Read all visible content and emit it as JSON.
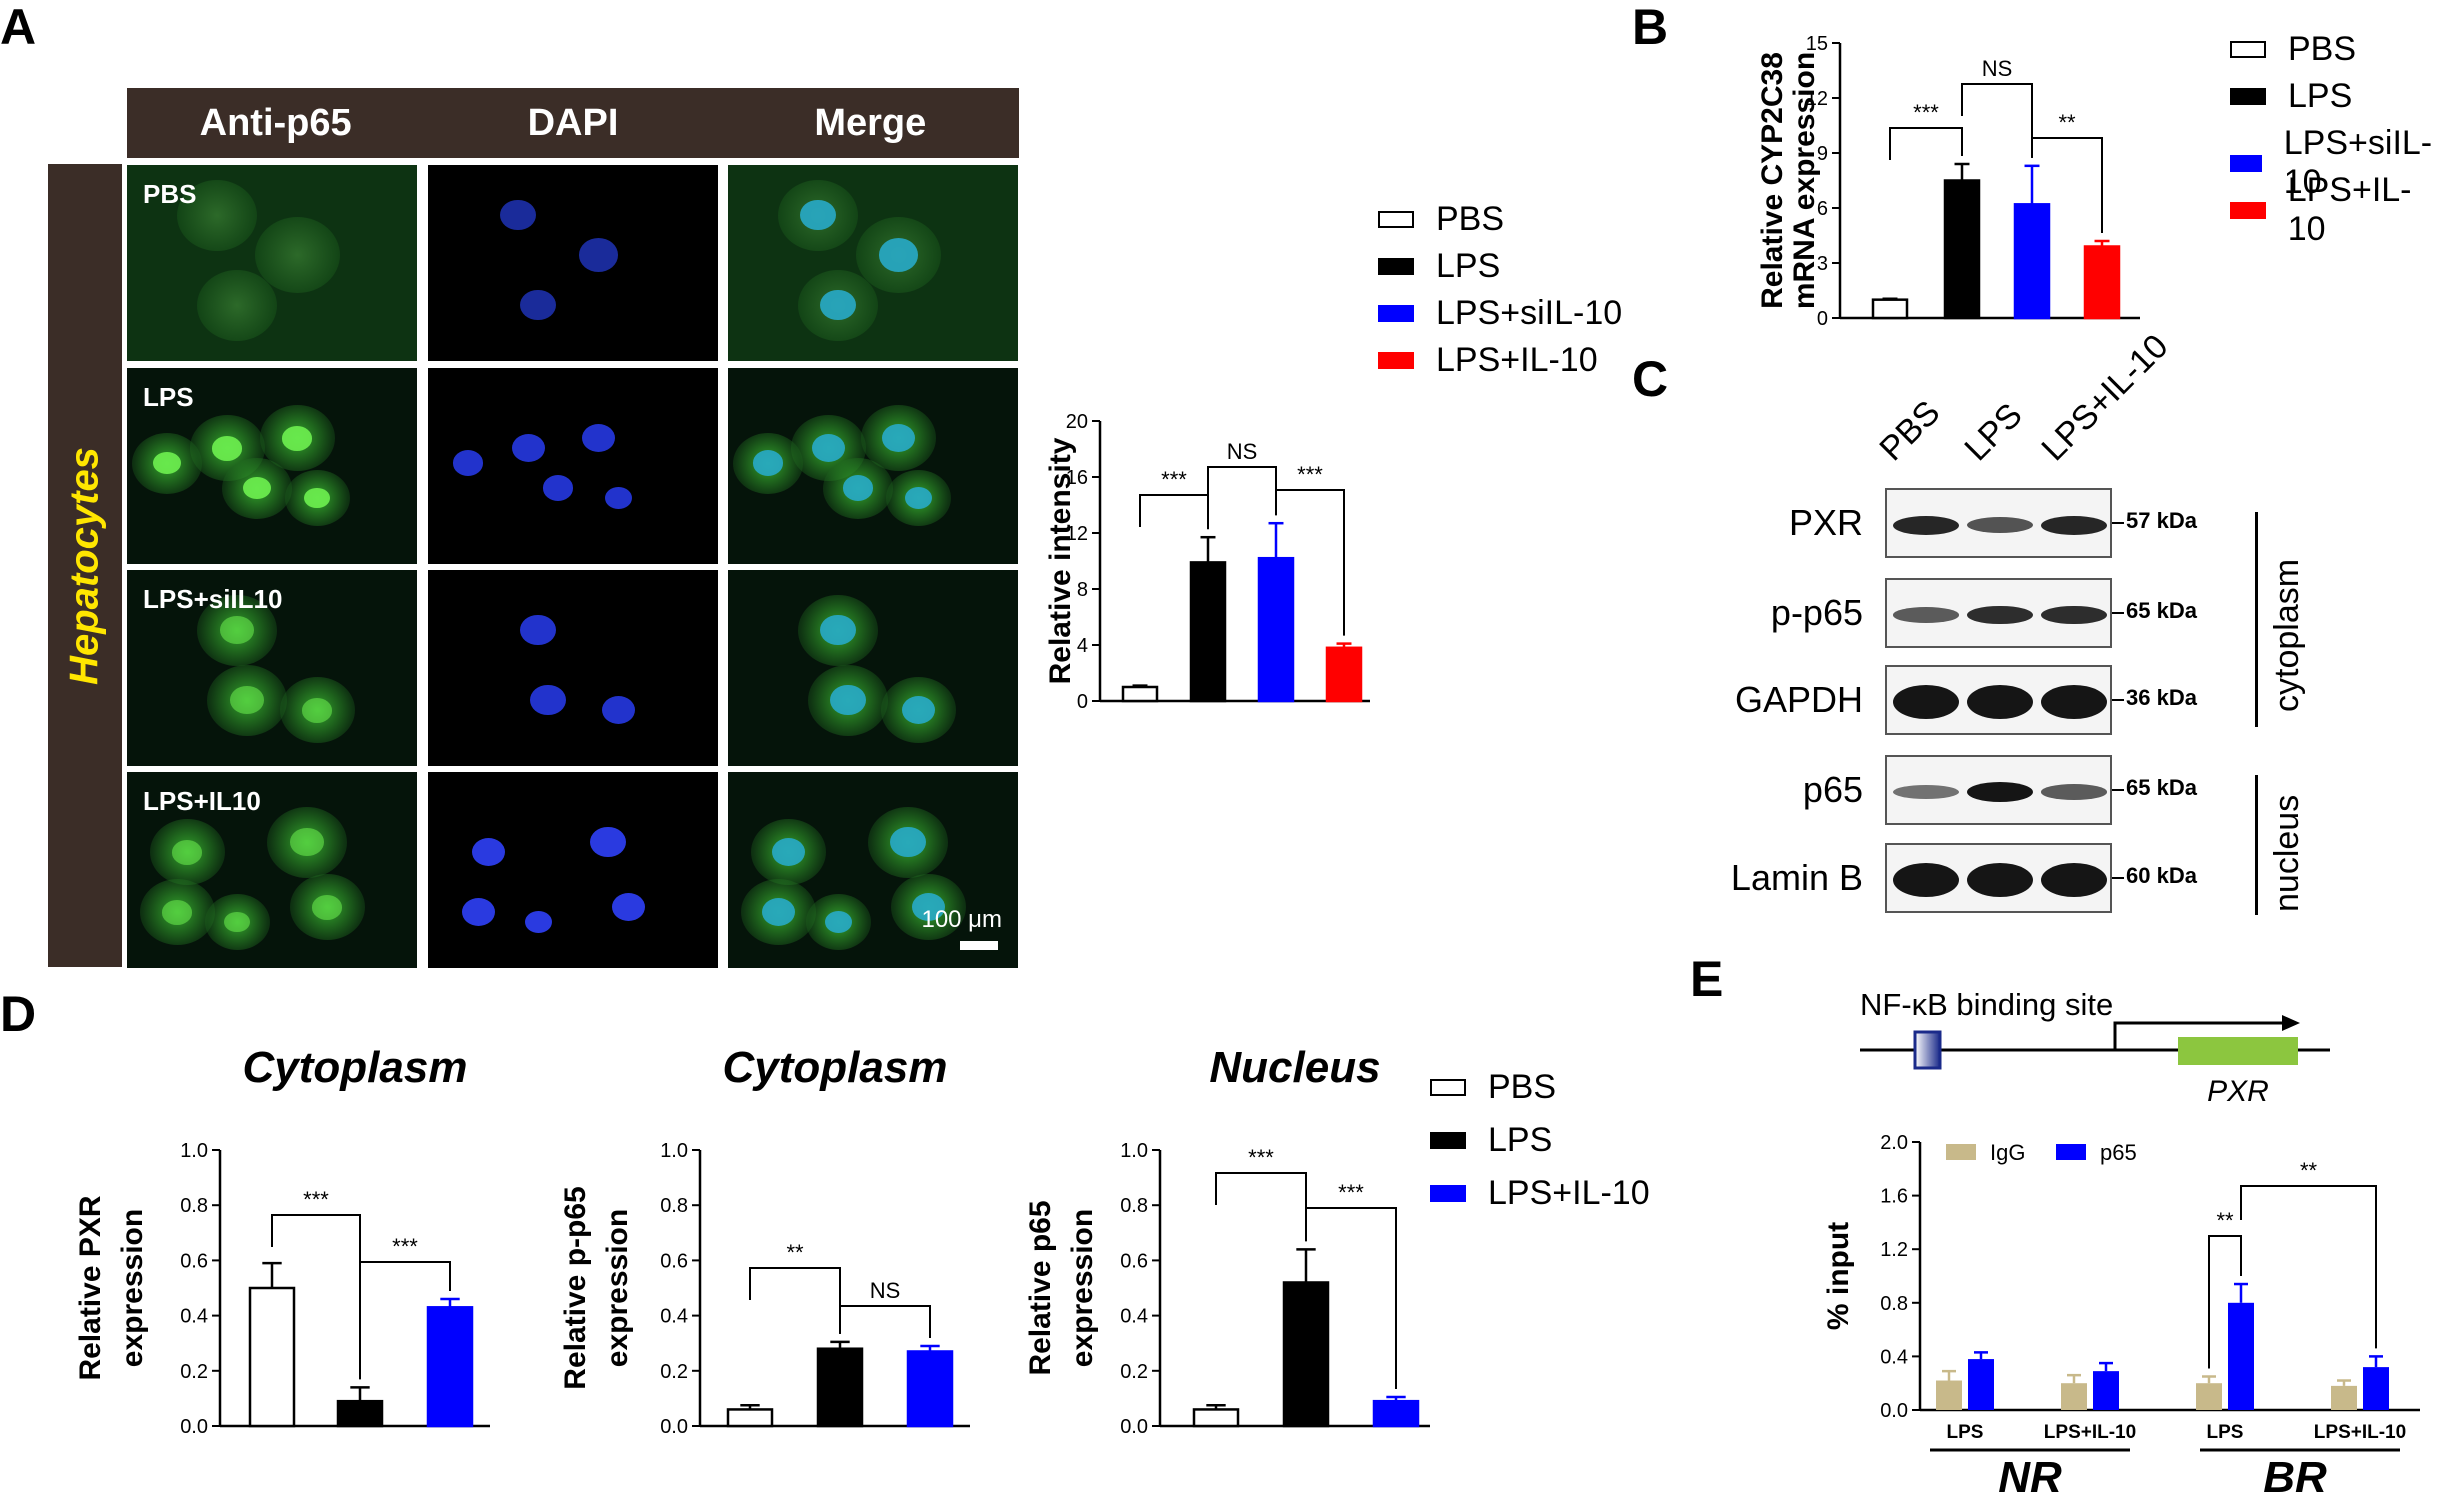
{
  "panelA": {
    "letter": "A",
    "columns": [
      "Anti-p65",
      "DAPI",
      "Merge"
    ],
    "side_label": "Hepatocytes",
    "rows": [
      "PBS",
      "LPS",
      "LPS+siIL10",
      "LPS+IL10"
    ],
    "scale_bar": "100 μm"
  },
  "panelB": {
    "letter": "B"
  },
  "panelC": {
    "letter": "C",
    "lanes": [
      "PBS",
      "LPS",
      "LPS+IL-10"
    ],
    "blots": [
      {
        "name": "PXR",
        "kda": "57 kDa"
      },
      {
        "name": "p-p65",
        "kda": "65 kDa"
      },
      {
        "name": "GAPDH",
        "kda": "36 kDa"
      },
      {
        "name": "p65",
        "kda": "65 kDa"
      },
      {
        "name": "Lamin B",
        "kda": "60 kDa"
      }
    ],
    "fractions": [
      "cytoplasm",
      "nucleus"
    ]
  },
  "panelD": {
    "letter": "D"
  },
  "panelE": {
    "letter": "E",
    "diagram": {
      "site_label": "NF-κB binding site",
      "gene": "PXR"
    }
  },
  "legend4": [
    "PBS",
    "LPS",
    "LPS+siIL-10",
    "LPS+IL-10"
  ],
  "legend3": [
    "PBS",
    "LPS",
    "LPS+IL-10"
  ],
  "colors": {
    "PBS": "#ffffff",
    "LPS": "#000000",
    "siIL10": "#0000ff",
    "IL10": "#ff0000",
    "IgG": "#c8b98a",
    "p65": "#0000ff"
  },
  "chart_data": [
    {
      "id": "A-intensity",
      "type": "bar",
      "title": "",
      "ylabel": "Relative intensity",
      "xlabel": "",
      "categories": [
        "PBS",
        "LPS",
        "LPS+siIL-10",
        "LPS+IL-10"
      ],
      "values": [
        1.0,
        9.9,
        10.2,
        3.8
      ],
      "errors": [
        0.1,
        1.8,
        2.5,
        0.3
      ],
      "ylim": [
        0,
        20
      ],
      "yticks": [
        0,
        4,
        8,
        12,
        16,
        20
      ],
      "significance": [
        "***",
        "NS",
        "***"
      ]
    },
    {
      "id": "B-cyp2c38",
      "type": "bar",
      "title": "",
      "ylabel": [
        "Relative CYP2C38",
        "mRNA expression"
      ],
      "xlabel": "",
      "categories": [
        "PBS",
        "LPS",
        "LPS+siIL-10",
        "LPS+IL-10"
      ],
      "values": [
        1.0,
        7.5,
        6.2,
        3.9
      ],
      "errors": [
        0.05,
        0.9,
        2.1,
        0.3
      ],
      "ylim": [
        0,
        15
      ],
      "yticks": [
        0,
        3,
        6,
        9,
        12,
        15
      ],
      "significance": [
        "***",
        "NS",
        "**"
      ]
    },
    {
      "id": "D-pxr",
      "type": "bar",
      "title": "Cytoplasm",
      "ylabel": [
        "Relative PXR",
        "expression"
      ],
      "xlabel": "",
      "categories": [
        "PBS",
        "LPS",
        "LPS+IL-10"
      ],
      "values": [
        0.5,
        0.09,
        0.43
      ],
      "errors": [
        0.09,
        0.05,
        0.03
      ],
      "ylim": [
        0,
        1.0
      ],
      "yticks": [
        "0.0",
        "0.2",
        "0.4",
        "0.6",
        "0.8",
        "1.0"
      ],
      "significance": [
        "***",
        "***"
      ]
    },
    {
      "id": "D-pp65",
      "type": "bar",
      "title": "Cytoplasm",
      "ylabel": [
        "Relative p-p65",
        "expression"
      ],
      "xlabel": "",
      "categories": [
        "PBS",
        "LPS",
        "LPS+IL-10"
      ],
      "values": [
        0.06,
        0.28,
        0.27
      ],
      "errors": [
        0.015,
        0.025,
        0.02
      ],
      "ylim": [
        0,
        1.0
      ],
      "yticks": [
        "0.0",
        "0.2",
        "0.4",
        "0.6",
        "0.8",
        "1.0"
      ],
      "significance": [
        "**",
        "NS"
      ]
    },
    {
      "id": "D-p65",
      "type": "bar",
      "title": "Nucleus",
      "ylabel": [
        "Relative p65",
        "expression"
      ],
      "xlabel": "",
      "categories": [
        "PBS",
        "LPS",
        "LPS+IL-10"
      ],
      "values": [
        0.06,
        0.52,
        0.09
      ],
      "errors": [
        0.015,
        0.12,
        0.015
      ],
      "ylim": [
        0,
        1.0
      ],
      "yticks": [
        "0.0",
        "0.2",
        "0.4",
        "0.6",
        "0.8",
        "1.0"
      ],
      "significance": [
        "***",
        "***"
      ]
    },
    {
      "id": "E-chip",
      "type": "bar",
      "title": "",
      "ylabel": "% input",
      "xlabel": "",
      "series_names": [
        "IgG",
        "p65"
      ],
      "categories": [
        "LPS",
        "LPS+IL-10",
        "LPS",
        "LPS+IL-10"
      ],
      "groups": [
        "NR",
        "BR"
      ],
      "IgG": [
        0.22,
        0.2,
        0.2,
        0.18
      ],
      "IgG_err": [
        0.07,
        0.06,
        0.05,
        0.04
      ],
      "p65": [
        0.38,
        0.29,
        0.8,
        0.32
      ],
      "p65_err": [
        0.05,
        0.06,
        0.14,
        0.08
      ],
      "ylim": [
        0,
        2.0
      ],
      "yticks": [
        "0.0",
        "0.4",
        "0.8",
        "1.2",
        "1.6",
        "2.0"
      ],
      "significance": [
        "**",
        "**"
      ]
    }
  ]
}
